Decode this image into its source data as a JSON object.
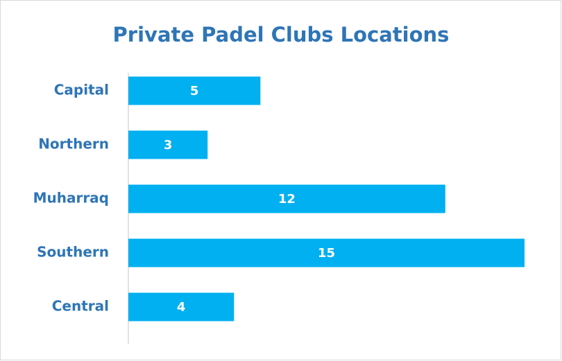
{
  "chart_data": {
    "type": "barh",
    "title": "Private Padel Clubs Locations",
    "categories": [
      "Capital",
      "Northern",
      "Muharraq",
      "Southern",
      "Central"
    ],
    "values": [
      5,
      3,
      12,
      15,
      4
    ],
    "color": "#00b0f0"
  }
}
